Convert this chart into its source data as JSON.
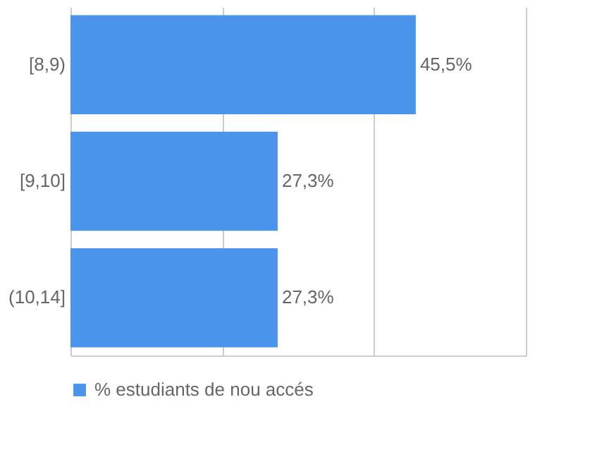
{
  "chart_data": {
    "type": "bar",
    "orientation": "horizontal",
    "categories": [
      "[8,9)",
      "[9,10]",
      "(10,14]"
    ],
    "series": [
      {
        "name": "% estudiants de nou accés",
        "color": "#4a94ec",
        "values": [
          45.5,
          27.3,
          27.3
        ],
        "value_labels": [
          "45,5%",
          "27,3%",
          "27,3%"
        ]
      }
    ],
    "xlim": [
      0,
      60
    ],
    "xticks": [
      {
        "value": 0,
        "label": null
      },
      {
        "value": 20,
        "label": null
      },
      {
        "value": 40,
        "label": null
      },
      {
        "value": 60,
        "label": null
      }
    ],
    "tick_labels": "y",
    "grid": "x",
    "legend": "bottom"
  }
}
